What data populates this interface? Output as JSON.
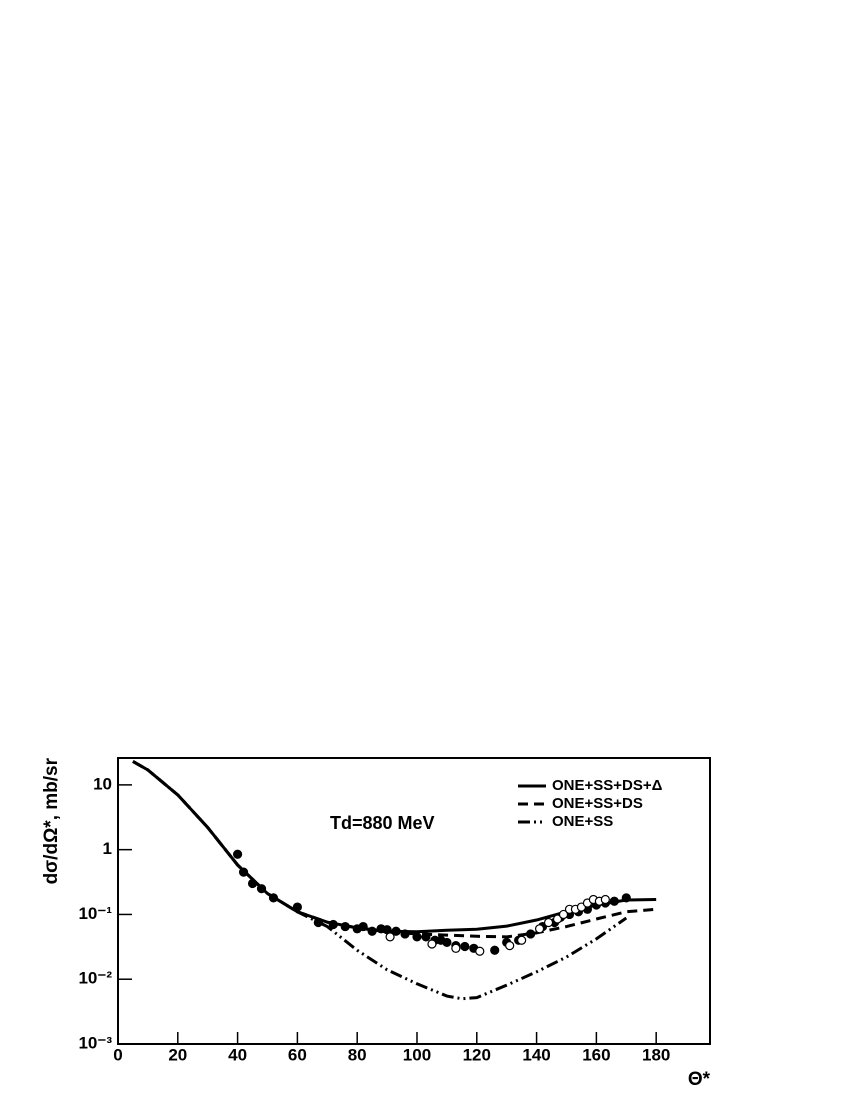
{
  "chart_data": {
    "type": "line",
    "annotation": "Td=880 MeV",
    "y_label": "dσ/dΩ*, mb/sr",
    "x_label": "Θ*",
    "xlim": [
      0,
      198
    ],
    "xticks": [
      0,
      20,
      40,
      60,
      80,
      100,
      120,
      140,
      160,
      180
    ],
    "ylim": [
      0.001,
      26
    ],
    "yscale": "log",
    "yticks": [
      {
        "value": 0.001,
        "label": "10⁻³"
      },
      {
        "value": 0.01,
        "label": "10⁻²"
      },
      {
        "value": 0.1,
        "label": "10⁻¹"
      },
      1,
      10
    ],
    "legend": "upper right",
    "series": [
      {
        "name": "ONE+SS+DS+Δ",
        "color": "#000000",
        "mode": "line",
        "dash": "solid",
        "x": [
          5,
          10,
          20,
          30,
          40,
          50,
          60,
          70,
          80,
          90,
          100,
          110,
          120,
          130,
          140,
          150,
          160,
          170,
          180
        ],
        "values": [
          23,
          17,
          7.0,
          2.2,
          0.58,
          0.21,
          0.11,
          0.076,
          0.062,
          0.055,
          0.054,
          0.057,
          0.059,
          0.066,
          0.082,
          0.11,
          0.14,
          0.167,
          0.17
        ]
      },
      {
        "name": "ONE+SS+DS",
        "color": "#000000",
        "mode": "line",
        "dash": "dashed",
        "x": [
          5,
          10,
          20,
          30,
          40,
          50,
          60,
          70,
          80,
          90,
          100,
          110,
          120,
          130,
          140,
          150,
          160,
          170,
          180
        ],
        "values": [
          23,
          17,
          7.0,
          2.2,
          0.58,
          0.21,
          0.11,
          0.076,
          0.062,
          0.054,
          0.05,
          0.048,
          0.046,
          0.045,
          0.052,
          0.065,
          0.085,
          0.11,
          0.12
        ]
      },
      {
        "name": "ONE+SS",
        "color": "#000000",
        "mode": "line",
        "dash": "dashdotdot",
        "x": [
          5,
          10,
          20,
          30,
          40,
          50,
          60,
          70,
          80,
          90,
          100,
          110,
          115,
          120,
          130,
          140,
          150,
          160,
          170
        ],
        "values": [
          23,
          17,
          7.0,
          2.2,
          0.58,
          0.21,
          0.11,
          0.065,
          0.028,
          0.014,
          0.0085,
          0.0055,
          0.005,
          0.0052,
          0.0081,
          0.013,
          0.022,
          0.042,
          0.088
        ]
      },
      {
        "color": "#000000",
        "mode": "markers",
        "marker": "filled",
        "x": [
          40,
          42,
          45,
          48,
          52,
          60,
          67,
          72,
          76,
          80,
          82,
          85,
          88,
          90,
          93,
          96,
          100,
          103,
          106,
          108,
          110,
          113,
          116,
          119,
          126,
          130,
          134,
          138,
          142,
          146,
          148,
          151,
          154,
          157,
          160,
          163,
          166,
          170
        ],
        "values": [
          0.85,
          0.45,
          0.3,
          0.25,
          0.18,
          0.13,
          0.075,
          0.07,
          0.065,
          0.06,
          0.065,
          0.055,
          0.06,
          0.058,
          0.055,
          0.05,
          0.045,
          0.045,
          0.04,
          0.04,
          0.037,
          0.033,
          0.032,
          0.03,
          0.028,
          0.037,
          0.04,
          0.05,
          0.065,
          0.075,
          0.09,
          0.1,
          0.11,
          0.12,
          0.14,
          0.15,
          0.16,
          0.18
        ]
      },
      {
        "color": "#000000",
        "mode": "markers",
        "marker": "open",
        "x": [
          91,
          105,
          113,
          121,
          131,
          135,
          141,
          144,
          147,
          149,
          151,
          153,
          155,
          157,
          159,
          161,
          163
        ],
        "values": [
          0.045,
          0.035,
          0.03,
          0.027,
          0.033,
          0.04,
          0.06,
          0.075,
          0.085,
          0.1,
          0.12,
          0.12,
          0.13,
          0.15,
          0.17,
          0.16,
          0.17
        ]
      }
    ]
  }
}
